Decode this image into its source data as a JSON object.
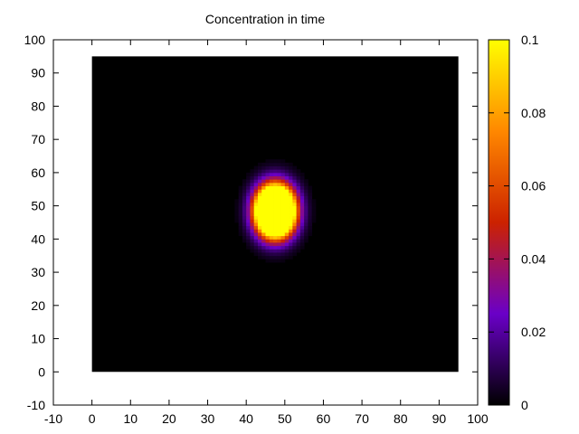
{
  "chart_data": {
    "type": "heatmap",
    "title": "Concentration in time",
    "xlabel": "",
    "ylabel": "",
    "xlim": [
      -10,
      100
    ],
    "ylim": [
      -10,
      100
    ],
    "x_ticks": [
      -10,
      0,
      10,
      20,
      30,
      40,
      50,
      60,
      70,
      80,
      90,
      100
    ],
    "y_ticks": [
      -10,
      0,
      10,
      20,
      30,
      40,
      50,
      60,
      70,
      80,
      90,
      100
    ],
    "data_extent": {
      "x": [
        0,
        95
      ],
      "y": [
        0,
        95
      ]
    },
    "grid_step": 1,
    "background_value": 0,
    "blob": {
      "center_x": 47.5,
      "center_y": 48.5,
      "sigma_x": 3.2,
      "sigma_y": 4.8,
      "peak": 0.35
    },
    "colorbar": {
      "range": [
        0,
        0.1
      ],
      "ticks": [
        0,
        0.02,
        0.04,
        0.06,
        0.08,
        0.1
      ],
      "tick_labels": [
        "0",
        "0.02",
        "0.04",
        "0.06",
        "0.08",
        "0.1"
      ],
      "palette": "black-purple-red-orange-yellow",
      "stops": [
        "#000000",
        "#6a00c8",
        "#cc2200",
        "#ff8800",
        "#ffff00"
      ]
    },
    "grid": false,
    "legend": "none"
  }
}
